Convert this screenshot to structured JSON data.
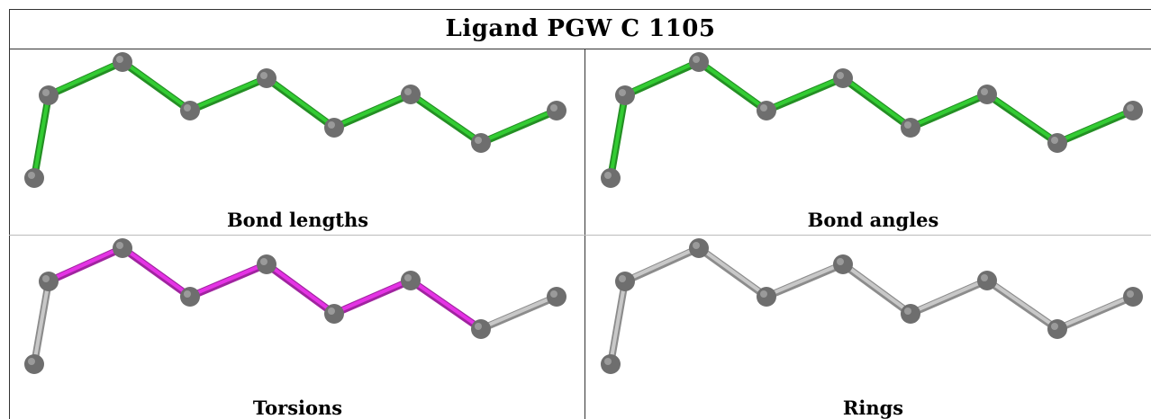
{
  "title": "Ligand PGW C 1105",
  "panels": [
    {
      "caption": "Bond lengths",
      "bond_colors": [
        "green",
        "green",
        "green",
        "green",
        "green",
        "green",
        "green",
        "green"
      ]
    },
    {
      "caption": "Bond angles",
      "bond_colors": [
        "green",
        "green",
        "green",
        "green",
        "green",
        "green",
        "green",
        "green"
      ]
    },
    {
      "caption": "Torsions",
      "bond_colors": [
        "grey",
        "magenta",
        "magenta",
        "magenta",
        "magenta",
        "magenta",
        "magenta",
        "grey"
      ]
    },
    {
      "caption": "Rings",
      "bond_colors": [
        "grey",
        "grey",
        "grey",
        "grey",
        "grey",
        "grey",
        "grey",
        "grey"
      ]
    }
  ],
  "colors": {
    "green": "#33cc33",
    "magenta": "#e533e5",
    "grey": "#c8c8c8",
    "atom": "#6e6e6e"
  }
}
